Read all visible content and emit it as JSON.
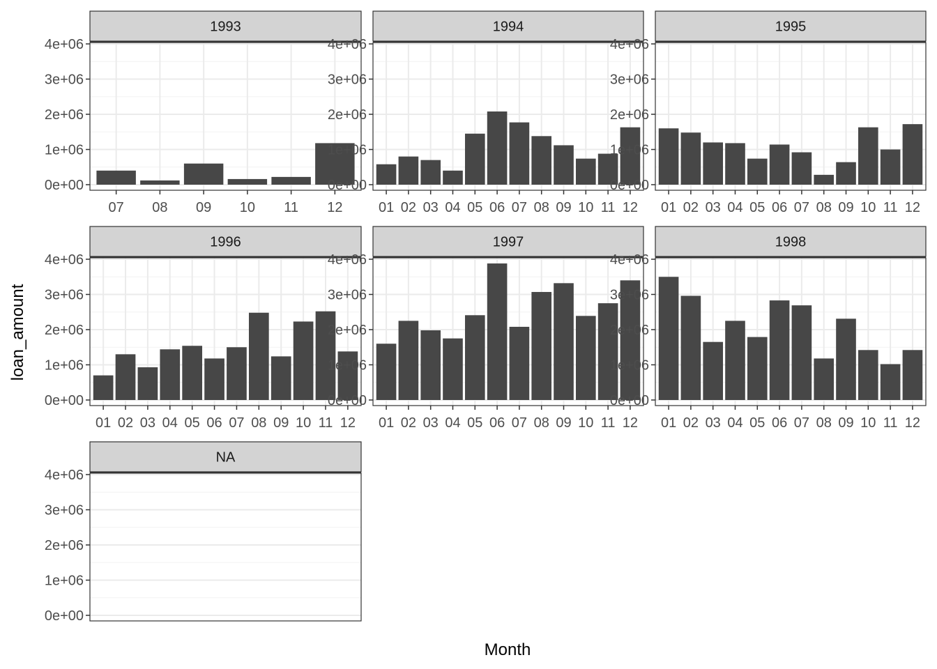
{
  "chart_data": {
    "type": "bar",
    "layout": "facet-wrap",
    "xlabel": "Month",
    "ylabel": "loan_amount",
    "ylim": [
      0,
      4000000
    ],
    "y_ticks": [
      0,
      1000000,
      2000000,
      3000000,
      4000000
    ],
    "y_tick_labels": [
      "0e+00",
      "1e+06",
      "2e+06",
      "3e+06",
      "4e+06"
    ],
    "grid": true,
    "bar_color": "#474747",
    "strip_fill": "#d3d3d3",
    "panels": [
      {
        "strip": "1993",
        "categories": [
          "07",
          "08",
          "09",
          "10",
          "11",
          "12"
        ],
        "values": [
          400000,
          120000,
          600000,
          160000,
          220000,
          1180000
        ]
      },
      {
        "strip": "1994",
        "categories": [
          "01",
          "02",
          "03",
          "04",
          "05",
          "06",
          "07",
          "08",
          "09",
          "10",
          "11",
          "12"
        ],
        "values": [
          580000,
          800000,
          700000,
          400000,
          1450000,
          2080000,
          1770000,
          1380000,
          1120000,
          740000,
          880000,
          1630000
        ]
      },
      {
        "strip": "1995",
        "categories": [
          "01",
          "02",
          "03",
          "04",
          "05",
          "06",
          "07",
          "08",
          "09",
          "10",
          "11",
          "12"
        ],
        "values": [
          1600000,
          1480000,
          1200000,
          1180000,
          740000,
          1140000,
          920000,
          280000,
          640000,
          1630000,
          1000000,
          1720000
        ]
      },
      {
        "strip": "1996",
        "categories": [
          "01",
          "02",
          "03",
          "04",
          "05",
          "06",
          "07",
          "08",
          "09",
          "10",
          "11",
          "12"
        ],
        "values": [
          700000,
          1300000,
          930000,
          1440000,
          1540000,
          1180000,
          1500000,
          2480000,
          1240000,
          2230000,
          2520000,
          1380000
        ]
      },
      {
        "strip": "1997",
        "categories": [
          "01",
          "02",
          "03",
          "04",
          "05",
          "06",
          "07",
          "08",
          "09",
          "10",
          "11",
          "12"
        ],
        "values": [
          1600000,
          2250000,
          1980000,
          1750000,
          2410000,
          3880000,
          2080000,
          3070000,
          3320000,
          2390000,
          2750000,
          3400000
        ]
      },
      {
        "strip": "1998",
        "categories": [
          "01",
          "02",
          "03",
          "04",
          "05",
          "06",
          "07",
          "08",
          "09",
          "10",
          "11",
          "12"
        ],
        "values": [
          3500000,
          2960000,
          1650000,
          2250000,
          1790000,
          2830000,
          2690000,
          1180000,
          2310000,
          1420000,
          1020000,
          1420000
        ]
      },
      {
        "strip": "NA",
        "categories": [],
        "values": []
      }
    ]
  }
}
